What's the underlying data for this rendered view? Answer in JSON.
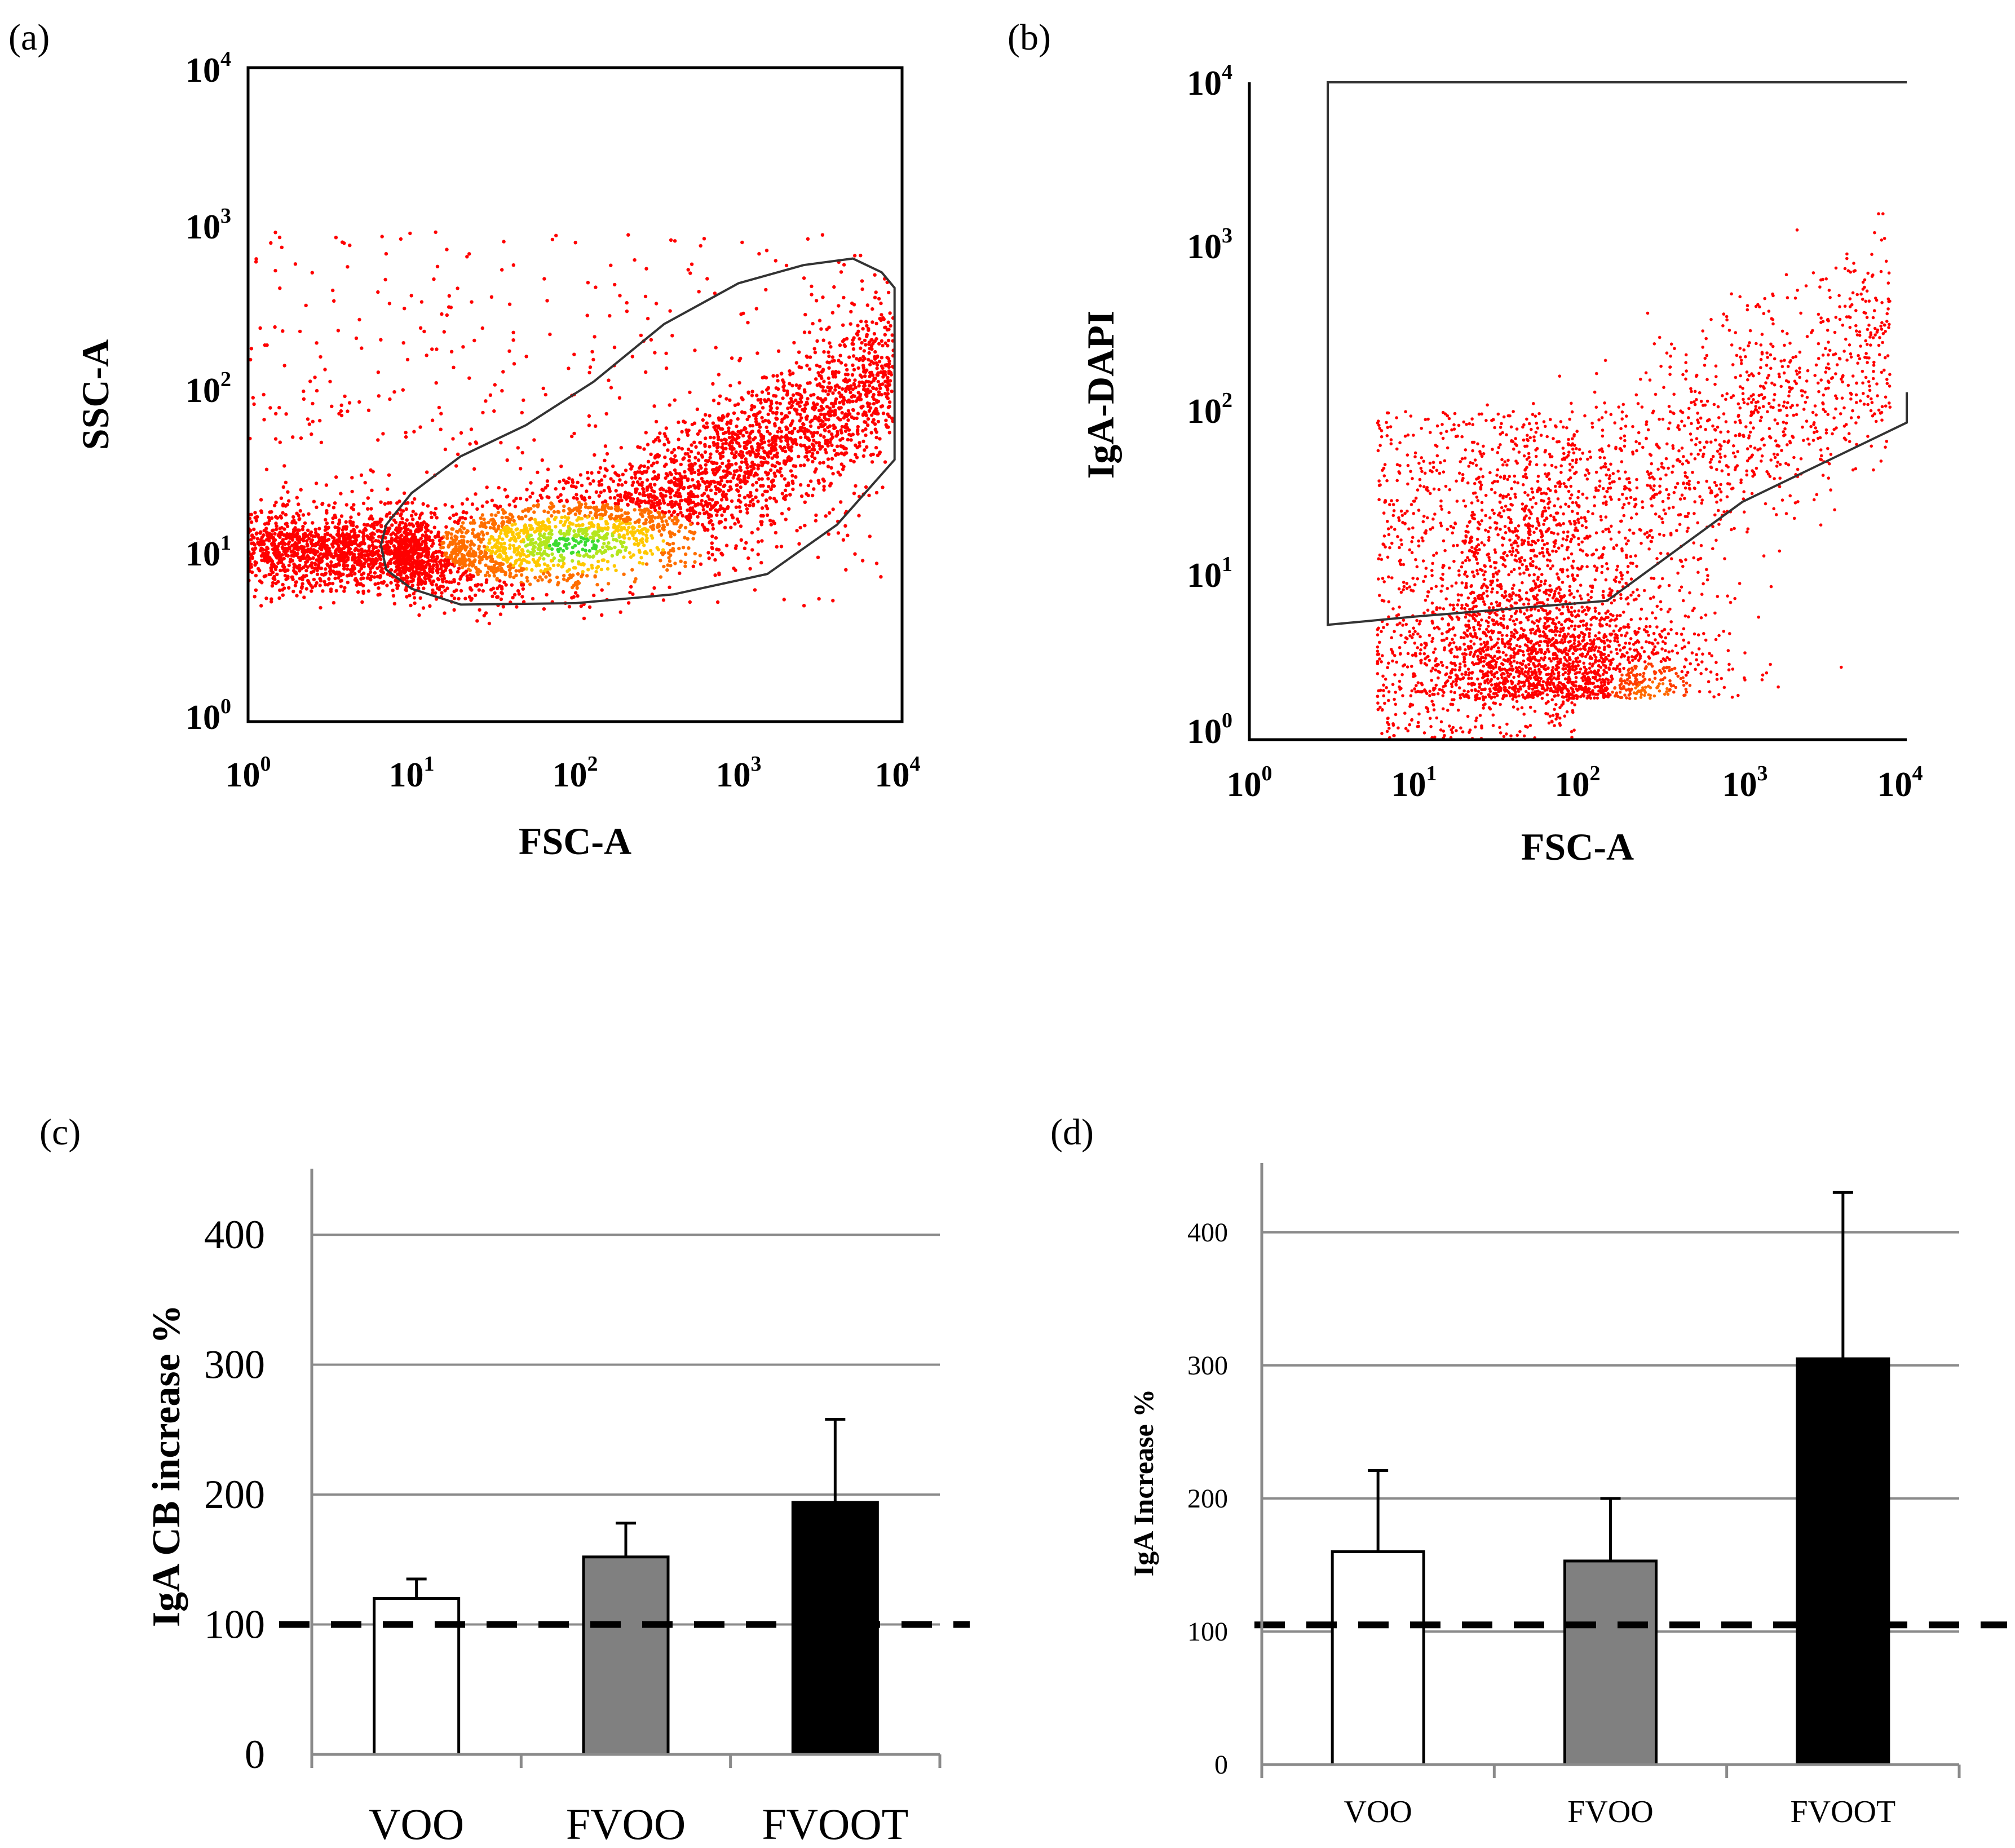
{
  "chart_data": [
    {
      "type": "scatter",
      "panel_label": "(a)",
      "xlabel": "FSC-A",
      "ylabel": "SSC-A",
      "xscale": "log",
      "yscale": "log",
      "xlim": [
        1,
        10000
      ],
      "ylim": [
        1,
        10000
      ],
      "x_ticks": [
        {
          "base": "10",
          "exp": "0"
        },
        {
          "base": "10",
          "exp": "1"
        },
        {
          "base": "10",
          "exp": "2"
        },
        {
          "base": "10",
          "exp": "3"
        },
        {
          "base": "10",
          "exp": "4"
        }
      ],
      "y_ticks": [
        {
          "base": "10",
          "exp": "0"
        },
        {
          "base": "10",
          "exp": "1"
        },
        {
          "base": "10",
          "exp": "2"
        },
        {
          "base": "10",
          "exp": "3"
        },
        {
          "base": "10",
          "exp": "4"
        }
      ],
      "density_core": {
        "x": 100,
        "y": 12
      },
      "gate_polygon": [
        [
          7,
          16
        ],
        [
          10,
          25
        ],
        [
          20,
          42
        ],
        [
          50,
          65
        ],
        [
          130,
          120
        ],
        [
          350,
          270
        ],
        [
          1000,
          480
        ],
        [
          2500,
          620
        ],
        [
          5000,
          680
        ],
        [
          7500,
          560
        ],
        [
          9000,
          450
        ],
        [
          9000,
          40
        ],
        [
          4000,
          16
        ],
        [
          1500,
          8
        ],
        [
          400,
          6
        ],
        [
          100,
          5.3
        ],
        [
          20,
          5.2
        ],
        [
          10,
          6.5
        ],
        [
          7,
          8.5
        ],
        [
          6.5,
          12
        ]
      ],
      "gate_color": "#333333",
      "point_color": "#ff0000"
    },
    {
      "type": "scatter",
      "panel_label": "(b)",
      "xlabel": "FSC-A",
      "ylabel": "IgA-DAPI",
      "xscale": "log",
      "yscale": "log",
      "xlim": [
        1,
        10000
      ],
      "ylim": [
        1,
        10000
      ],
      "x_ticks": [
        {
          "base": "10",
          "exp": "0"
        },
        {
          "base": "10",
          "exp": "1"
        },
        {
          "base": "10",
          "exp": "2"
        },
        {
          "base": "10",
          "exp": "3"
        },
        {
          "base": "10",
          "exp": "4"
        }
      ],
      "y_ticks": [
        {
          "base": "10",
          "exp": "0"
        },
        {
          "base": "10",
          "exp": "1"
        },
        {
          "base": "10",
          "exp": "2"
        },
        {
          "base": "10",
          "exp": "3"
        },
        {
          "base": "10",
          "exp": "4"
        }
      ],
      "gate_polyline": [
        [
          10000,
          130
        ],
        [
          10000,
          85
        ],
        [
          1000,
          28
        ],
        [
          150,
          7
        ],
        [
          10,
          5.6
        ],
        [
          3,
          5
        ],
        [
          3,
          10000
        ],
        [
          10000,
          10000
        ]
      ],
      "gate_color": "#333333",
      "point_color": "#ff0000"
    },
    {
      "type": "bar",
      "panel_label": "(c)",
      "title": "",
      "xlabel": "",
      "ylabel": "IgA CB increase %",
      "categories": [
        "VOO",
        "FVOO",
        "FVOOT"
      ],
      "values": [
        120,
        152,
        194
      ],
      "errors": [
        15,
        26,
        64
      ],
      "bar_colors": [
        "#ffffff",
        "#808080",
        "#000000"
      ],
      "ylim": [
        0,
        450
      ],
      "y_ticks": [
        0,
        100,
        200,
        300,
        400
      ],
      "grid": true,
      "reference_line": 100
    },
    {
      "type": "bar",
      "panel_label": "(d)",
      "title": "",
      "xlabel": "",
      "ylabel": "IgA Increase %",
      "categories": [
        "VOO",
        "FVOO",
        "FVOOT"
      ],
      "values": [
        160,
        153,
        305
      ],
      "errors": [
        61,
        47,
        125
      ],
      "bar_colors": [
        "#ffffff",
        "#808080",
        "#000000"
      ],
      "ylim": [
        0,
        450
      ],
      "y_ticks": [
        0,
        100,
        200,
        300,
        400
      ],
      "grid": true,
      "reference_line": 105
    }
  ]
}
